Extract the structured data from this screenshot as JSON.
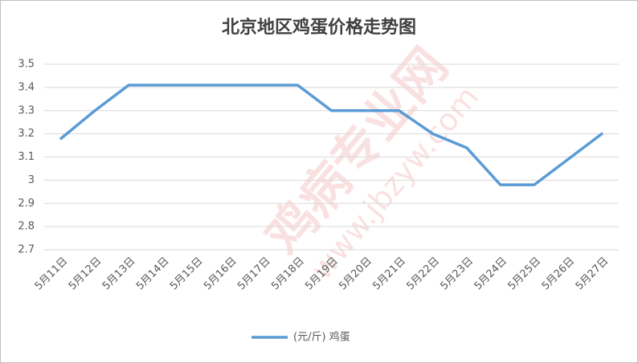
{
  "chart_data": {
    "type": "line",
    "title": "北京地区鸡蛋价格走势图",
    "watermark": "鸡病专业网",
    "watermark_url": "www.jbzyw.com",
    "categories": [
      "5月11日",
      "5月12日",
      "5月13日",
      "5月14日",
      "5月15日",
      "5月16日",
      "5月17日",
      "5月18日",
      "5月19日",
      "5月20日",
      "5月21日",
      "5月22日",
      "5月23日",
      "5月24日",
      "5月25日",
      "5月26日",
      "5月27日"
    ],
    "series": [
      {
        "name": "(元/斤) 鸡蛋",
        "color": "#5b9bd5",
        "values": [
          3.18,
          3.3,
          3.41,
          3.41,
          3.41,
          3.41,
          3.41,
          3.41,
          3.3,
          3.3,
          3.3,
          3.2,
          3.14,
          2.98,
          2.98,
          3.09,
          3.2
        ]
      }
    ],
    "ylim": [
      2.7,
      3.5
    ],
    "yticks": [
      2.7,
      2.8,
      2.9,
      3,
      3.1,
      3.2,
      3.3,
      3.4,
      3.5
    ],
    "grid": true,
    "legend": "bottom"
  }
}
